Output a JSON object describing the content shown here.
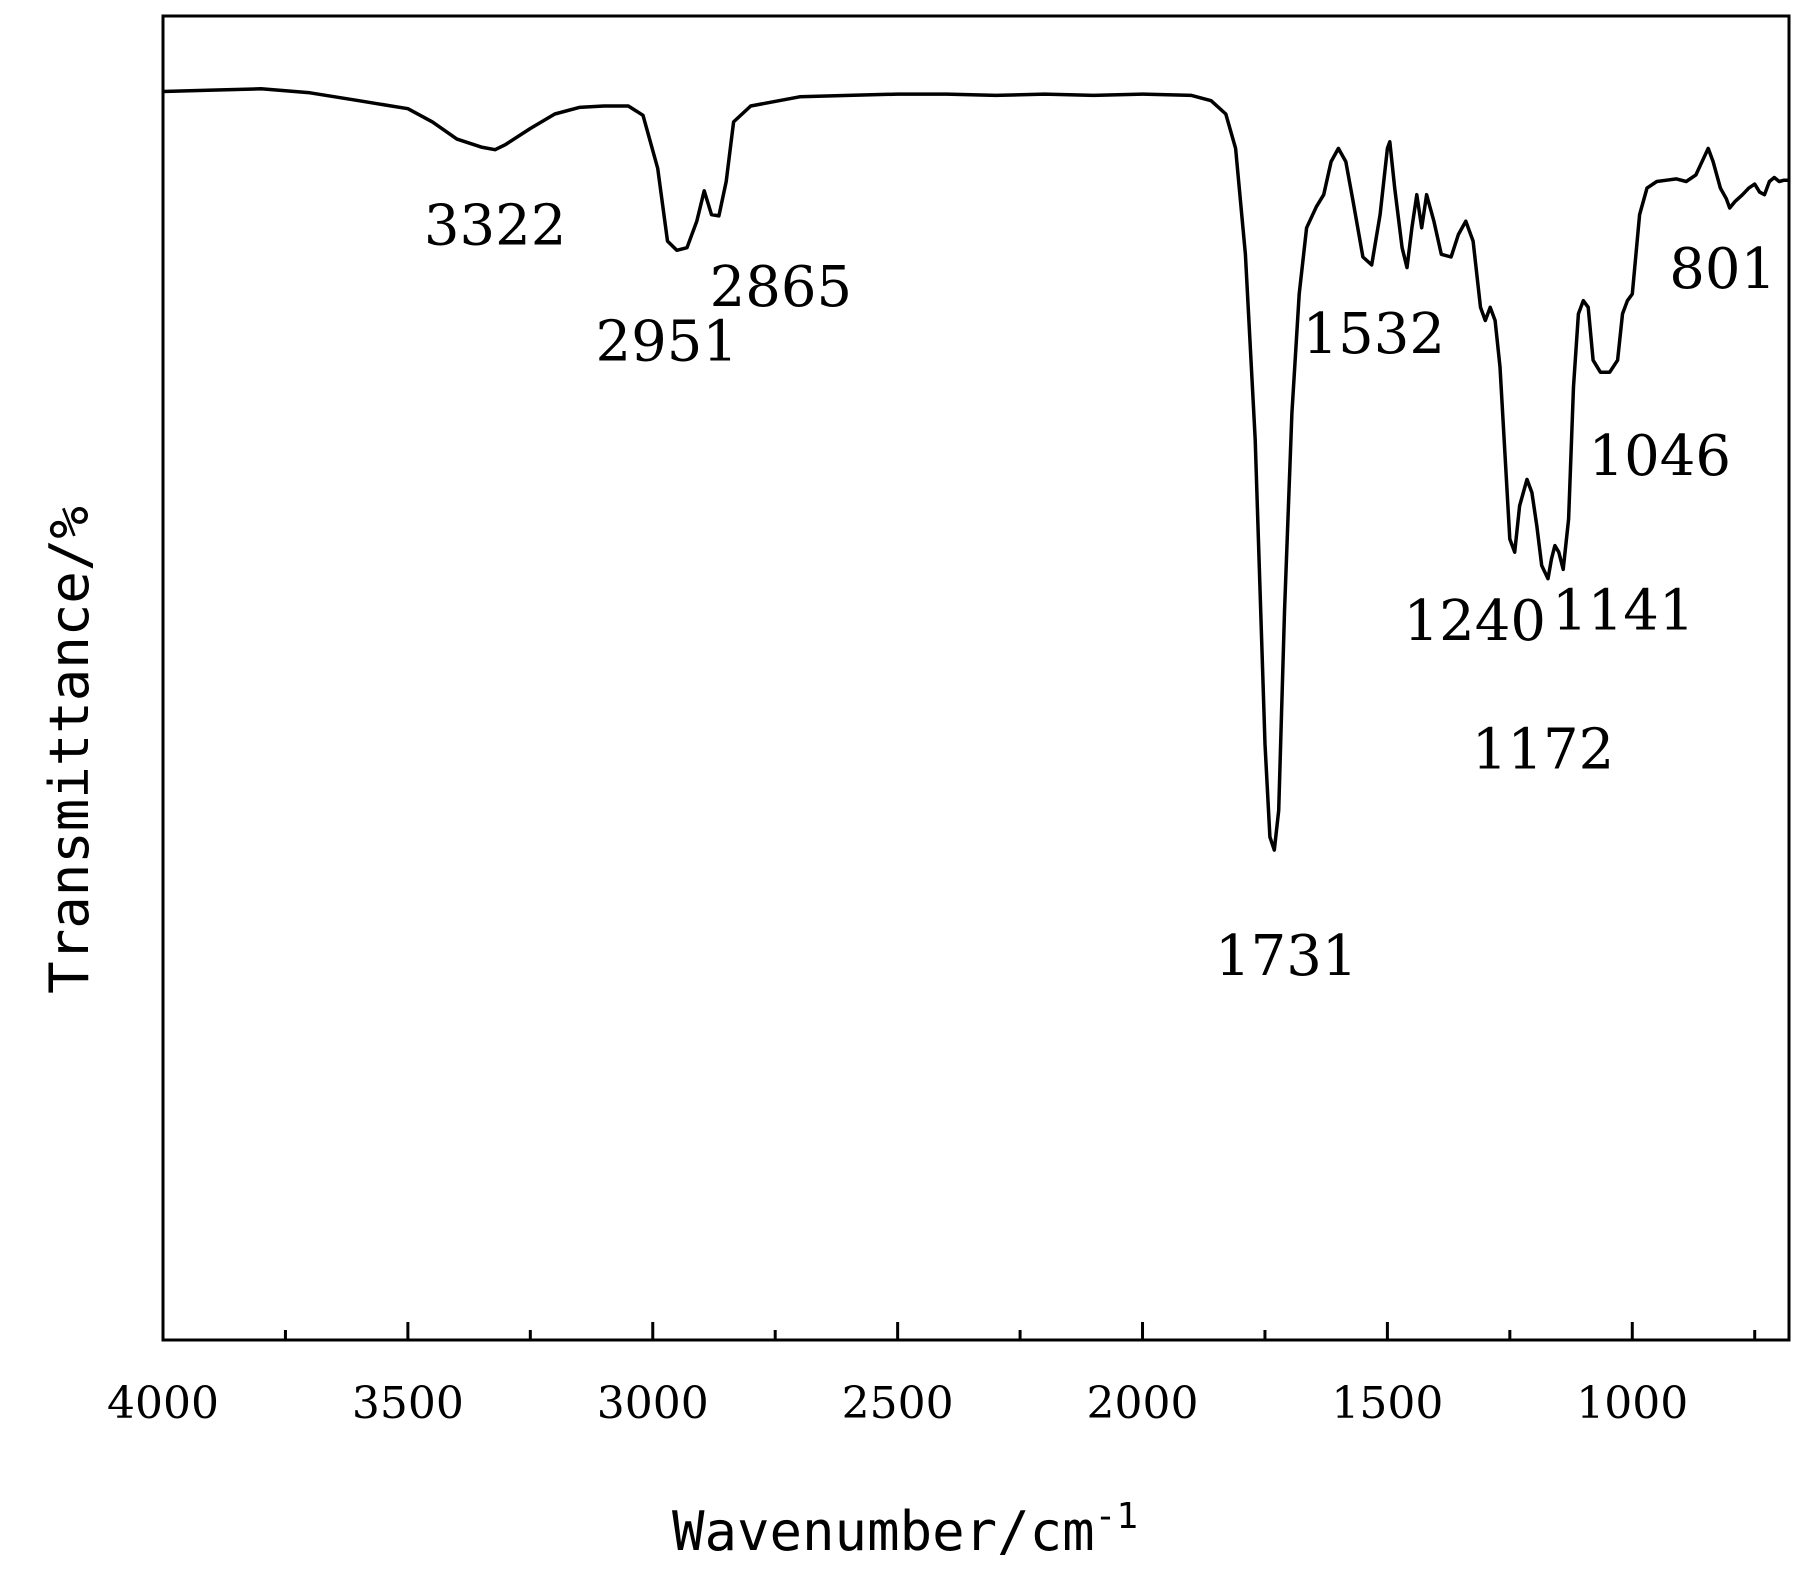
{
  "chart_data": {
    "type": "line",
    "title": "",
    "xlabel": "Wavenumber/cm",
    "xlabel_sup": "-1",
    "ylabel": "Transmittance/%",
    "xlim": [
      4000,
      680
    ],
    "x_reversed": true,
    "ylim": [
      0,
      100
    ],
    "grid": false,
    "legend": "none",
    "x_ticks": [
      {
        "value": 4000,
        "label": "4000"
      },
      {
        "value": 3500,
        "label": "3500"
      },
      {
        "value": 3000,
        "label": "3000"
      },
      {
        "value": 2500,
        "label": "2500"
      },
      {
        "value": 2000,
        "label": "2000"
      },
      {
        "value": 1500,
        "label": "1500"
      },
      {
        "value": 1000,
        "label": "1000"
      }
    ],
    "series": [
      {
        "color": "#000000",
        "points": [
          [
            4000,
            94.3
          ],
          [
            3900,
            94.4
          ],
          [
            3800,
            94.5
          ],
          [
            3700,
            94.2
          ],
          [
            3600,
            93.6
          ],
          [
            3500,
            93.0
          ],
          [
            3450,
            92.0
          ],
          [
            3400,
            90.7
          ],
          [
            3350,
            90.1
          ],
          [
            3322,
            89.9
          ],
          [
            3300,
            90.3
          ],
          [
            3250,
            91.5
          ],
          [
            3200,
            92.6
          ],
          [
            3150,
            93.1
          ],
          [
            3100,
            93.2
          ],
          [
            3050,
            93.2
          ],
          [
            3020,
            92.5
          ],
          [
            2990,
            88.5
          ],
          [
            2970,
            83.0
          ],
          [
            2951,
            82.3
          ],
          [
            2930,
            82.5
          ],
          [
            2910,
            84.5
          ],
          [
            2895,
            86.8
          ],
          [
            2880,
            85.0
          ],
          [
            2865,
            84.9
          ],
          [
            2850,
            87.5
          ],
          [
            2835,
            92.0
          ],
          [
            2800,
            93.2
          ],
          [
            2700,
            93.9
          ],
          [
            2600,
            94.0
          ],
          [
            2500,
            94.1
          ],
          [
            2400,
            94.1
          ],
          [
            2300,
            94.0
          ],
          [
            2200,
            94.1
          ],
          [
            2100,
            94.0
          ],
          [
            2000,
            94.1
          ],
          [
            1900,
            94.0
          ],
          [
            1860,
            93.6
          ],
          [
            1830,
            92.6
          ],
          [
            1810,
            90.0
          ],
          [
            1790,
            82.0
          ],
          [
            1770,
            68.0
          ],
          [
            1750,
            45.0
          ],
          [
            1740,
            38.0
          ],
          [
            1731,
            37.0
          ],
          [
            1722,
            40.0
          ],
          [
            1710,
            55.0
          ],
          [
            1695,
            70.0
          ],
          [
            1680,
            79.0
          ],
          [
            1665,
            84.0
          ],
          [
            1645,
            85.6
          ],
          [
            1630,
            86.5
          ],
          [
            1615,
            89.0
          ],
          [
            1600,
            90.0
          ],
          [
            1585,
            89.0
          ],
          [
            1570,
            86.0
          ],
          [
            1550,
            81.8
          ],
          [
            1532,
            81.2
          ],
          [
            1515,
            85.0
          ],
          [
            1500,
            90.0
          ],
          [
            1495,
            90.5
          ],
          [
            1485,
            87.0
          ],
          [
            1470,
            82.5
          ],
          [
            1460,
            81.0
          ],
          [
            1450,
            84.0
          ],
          [
            1440,
            86.5
          ],
          [
            1430,
            84.0
          ],
          [
            1420,
            86.5
          ],
          [
            1405,
            84.5
          ],
          [
            1390,
            82.0
          ],
          [
            1370,
            81.8
          ],
          [
            1355,
            83.5
          ],
          [
            1340,
            84.5
          ],
          [
            1325,
            83.0
          ],
          [
            1310,
            78.0
          ],
          [
            1300,
            77.0
          ],
          [
            1290,
            78.0
          ],
          [
            1280,
            77.0
          ],
          [
            1270,
            73.5
          ],
          [
            1260,
            67.0
          ],
          [
            1250,
            60.5
          ],
          [
            1240,
            59.5
          ],
          [
            1230,
            63.0
          ],
          [
            1215,
            65.0
          ],
          [
            1205,
            64.0
          ],
          [
            1195,
            61.5
          ],
          [
            1185,
            58.5
          ],
          [
            1172,
            57.5
          ],
          [
            1165,
            59.0
          ],
          [
            1158,
            60.0
          ],
          [
            1150,
            59.5
          ],
          [
            1141,
            58.2
          ],
          [
            1130,
            62.0
          ],
          [
            1120,
            72.0
          ],
          [
            1110,
            77.5
          ],
          [
            1100,
            78.5
          ],
          [
            1090,
            78.0
          ],
          [
            1080,
            74.0
          ],
          [
            1065,
            73.1
          ],
          [
            1046,
            73.1
          ],
          [
            1030,
            74.0
          ],
          [
            1020,
            77.5
          ],
          [
            1010,
            78.5
          ],
          [
            1000,
            79.0
          ],
          [
            985,
            85.0
          ],
          [
            970,
            87.0
          ],
          [
            950,
            87.5
          ],
          [
            930,
            87.6
          ],
          [
            910,
            87.7
          ],
          [
            890,
            87.5
          ],
          [
            870,
            88.0
          ],
          [
            860,
            88.8
          ],
          [
            845,
            90.0
          ],
          [
            835,
            89.0
          ],
          [
            820,
            87.0
          ],
          [
            808,
            86.2
          ],
          [
            801,
            85.5
          ],
          [
            790,
            86.0
          ],
          [
            775,
            86.5
          ],
          [
            762,
            87.0
          ],
          [
            750,
            87.3
          ],
          [
            740,
            86.7
          ],
          [
            730,
            86.5
          ],
          [
            720,
            87.5
          ],
          [
            710,
            87.8
          ],
          [
            700,
            87.5
          ],
          [
            690,
            87.6
          ],
          [
            680,
            87.6
          ]
        ]
      }
    ],
    "annotations": [
      {
        "label": "3322",
        "x": 3322,
        "y": 89.9
      },
      {
        "label": "2951",
        "x": 2951,
        "y": 82.3
      },
      {
        "label": "2865",
        "x": 2865,
        "y": 84.9
      },
      {
        "label": "1731",
        "x": 1731,
        "y": 37.0
      },
      {
        "label": "1532",
        "x": 1532,
        "y": 81.2
      },
      {
        "label": "1240",
        "x": 1240,
        "y": 59.5
      },
      {
        "label": "1172",
        "x": 1172,
        "y": 57.5
      },
      {
        "label": "1141",
        "x": 1141,
        "y": 58.2
      },
      {
        "label": "1046",
        "x": 1046,
        "y": 73.1
      },
      {
        "label": "801",
        "x": 801,
        "y": 85.5
      }
    ]
  }
}
